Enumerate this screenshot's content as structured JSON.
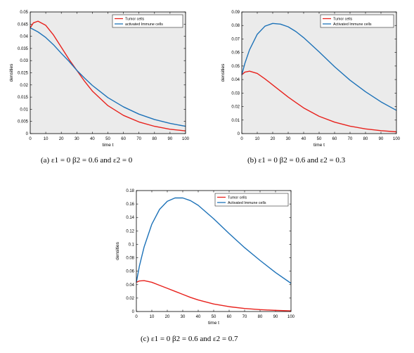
{
  "chart_data": [
    {
      "id": "a",
      "type": "line",
      "xlabel": "time t",
      "ylabel": "densities",
      "xlim": [
        0,
        100
      ],
      "ylim": [
        0,
        0.05
      ],
      "xticks": [
        0,
        10,
        20,
        30,
        40,
        50,
        60,
        70,
        80,
        90,
        100
      ],
      "yticks": [
        0,
        0.005,
        0.01,
        0.015,
        0.02,
        0.025,
        0.03,
        0.035,
        0.04,
        0.045,
        0.05
      ],
      "ytick_labels": [
        "0",
        "0.005",
        "0.01",
        "0.015",
        "0.02",
        "0.025",
        "0.03",
        "0.035",
        "0.04",
        "0.045",
        "0.05"
      ],
      "background": "#ebebeb",
      "legend_position": "top-right",
      "x": [
        0,
        2,
        5,
        10,
        15,
        20,
        25,
        30,
        35,
        40,
        50,
        60,
        70,
        80,
        90,
        100
      ],
      "series": [
        {
          "name": "Tumor cells",
          "color": "#e8211c",
          "values": [
            0.0435,
            0.0455,
            0.0462,
            0.0445,
            0.0405,
            0.0355,
            0.0305,
            0.026,
            0.0215,
            0.0175,
            0.0115,
            0.0075,
            0.0048,
            0.003,
            0.0018,
            0.0011
          ]
        },
        {
          "name": "activated Immune cells",
          "color": "#1d72b8",
          "values": [
            0.0435,
            0.0428,
            0.0418,
            0.0395,
            0.0365,
            0.033,
            0.0297,
            0.026,
            0.0228,
            0.0198,
            0.0148,
            0.011,
            0.008,
            0.0058,
            0.0042,
            0.003
          ]
        }
      ],
      "caption": "(a) ε1 = 0 β2 = 0.6 and ε2 = 0"
    },
    {
      "id": "b",
      "type": "line",
      "xlabel": "time t",
      "ylabel": "densities",
      "xlim": [
        0,
        100
      ],
      "ylim": [
        0,
        0.09
      ],
      "xticks": [
        0,
        10,
        20,
        30,
        40,
        50,
        60,
        70,
        80,
        90,
        100
      ],
      "yticks": [
        0,
        0.01,
        0.02,
        0.03,
        0.04,
        0.05,
        0.06,
        0.07,
        0.08,
        0.09
      ],
      "ytick_labels": [
        "0",
        "0.01",
        "0.02",
        "0.03",
        "0.04",
        "0.05",
        "0.06",
        "0.07",
        "0.08",
        "0.09"
      ],
      "background": "#ebebeb",
      "legend_position": "top-right",
      "x": [
        0,
        2,
        5,
        10,
        15,
        20,
        25,
        30,
        35,
        40,
        50,
        60,
        70,
        80,
        90,
        100
      ],
      "series": [
        {
          "name": "Tumor cells",
          "color": "#e8211c",
          "values": [
            0.0435,
            0.0455,
            0.0462,
            0.0445,
            0.0405,
            0.036,
            0.0315,
            0.027,
            0.023,
            0.019,
            0.0128,
            0.0085,
            0.0055,
            0.0035,
            0.0022,
            0.0013
          ]
        },
        {
          "name": "Activated Immune cells",
          "color": "#1d72b8",
          "values": [
            0.0435,
            0.052,
            0.062,
            0.0735,
            0.0795,
            0.0815,
            0.081,
            0.079,
            0.0755,
            0.071,
            0.0605,
            0.0495,
            0.0395,
            0.031,
            0.0235,
            0.0172
          ]
        }
      ],
      "caption": "(b) ε1 = 0 β2 = 0.6 and ε2 = 0.3"
    },
    {
      "id": "c",
      "type": "line",
      "xlabel": "time t",
      "ylabel": "densities",
      "xlim": [
        0,
        100
      ],
      "ylim": [
        0,
        0.18
      ],
      "xticks": [
        0,
        10,
        20,
        30,
        40,
        50,
        60,
        70,
        80,
        90,
        100
      ],
      "yticks": [
        0,
        0.02,
        0.04,
        0.06,
        0.08,
        0.1,
        0.12,
        0.14,
        0.16,
        0.18
      ],
      "ytick_labels": [
        "0",
        "0.02",
        "0.04",
        "0.06",
        "0.08",
        "0.1",
        "0.12",
        "0.14",
        "0.16",
        "0.18"
      ],
      "background": "#ffffff",
      "legend_position": "top-right",
      "x": [
        0,
        2,
        5,
        10,
        15,
        20,
        25,
        30,
        35,
        40,
        50,
        60,
        70,
        80,
        90,
        100
      ],
      "series": [
        {
          "name": "Tumor cells",
          "color": "#e8211c",
          "values": [
            0.0435,
            0.0455,
            0.046,
            0.0435,
            0.039,
            0.0345,
            0.03,
            0.0255,
            0.021,
            0.0172,
            0.0112,
            0.0072,
            0.0045,
            0.0028,
            0.0017,
            0.001
          ]
        },
        {
          "name": "Activated Immune cells",
          "color": "#1d72b8",
          "values": [
            0.0435,
            0.068,
            0.096,
            0.13,
            0.152,
            0.164,
            0.169,
            0.169,
            0.165,
            0.158,
            0.138,
            0.116,
            0.095,
            0.076,
            0.058,
            0.042
          ]
        }
      ],
      "caption": "(c) ε1 = 0 β2 = 0.6 and ε2 = 0.7"
    }
  ]
}
